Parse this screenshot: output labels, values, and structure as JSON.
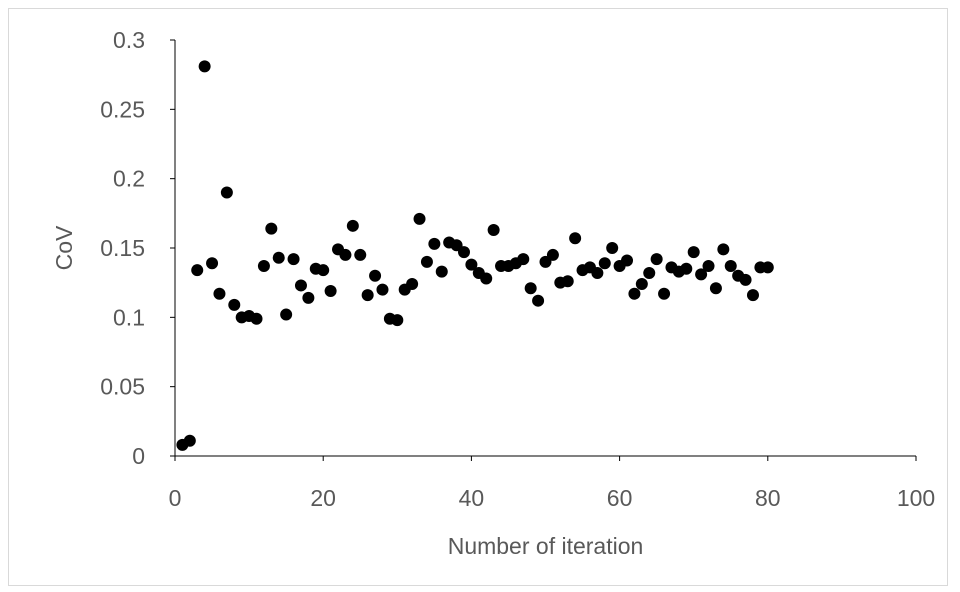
{
  "chart_data": {
    "type": "scatter",
    "title": "",
    "xlabel": "Number of iteration",
    "ylabel": "CoV",
    "xlim": [
      0,
      100
    ],
    "ylim": [
      0,
      0.3
    ],
    "xticks": [
      "0",
      "20",
      "40",
      "60",
      "80",
      "100"
    ],
    "yticks": [
      "0",
      "0.05",
      "0.1",
      "0.15",
      "0.2",
      "0.25",
      "0.3"
    ],
    "xtick_values": [
      0,
      20,
      40,
      60,
      80,
      100
    ],
    "ytick_values": [
      0,
      0.05,
      0.1,
      0.15,
      0.2,
      0.25,
      0.3
    ],
    "grid": false,
    "marker_color": "#000000",
    "axis_color": "#000000",
    "text_color": "#595959",
    "series": [
      {
        "x": [
          1,
          2,
          3,
          4,
          5,
          6,
          7,
          8,
          9,
          10,
          11,
          12,
          13,
          14,
          15,
          16,
          17,
          18,
          19,
          20,
          21,
          22,
          23,
          24,
          25,
          26,
          27,
          28,
          29,
          30,
          31,
          32,
          33,
          34,
          35,
          36,
          37,
          38,
          39,
          40,
          41,
          42,
          43,
          44,
          45,
          46,
          47,
          48,
          49,
          50,
          51,
          52,
          53,
          54,
          55,
          56,
          57,
          58,
          59,
          60,
          61,
          62,
          63,
          64,
          65,
          66,
          67,
          68,
          69,
          70,
          71,
          72,
          73,
          74,
          75,
          76,
          77,
          78,
          79,
          80
        ],
        "y": [
          0.008,
          0.011,
          0.134,
          0.281,
          0.139,
          0.117,
          0.19,
          0.109,
          0.1,
          0.101,
          0.099,
          0.137,
          0.164,
          0.143,
          0.102,
          0.142,
          0.123,
          0.114,
          0.135,
          0.134,
          0.119,
          0.149,
          0.145,
          0.166,
          0.145,
          0.116,
          0.13,
          0.12,
          0.099,
          0.098,
          0.12,
          0.124,
          0.171,
          0.14,
          0.153,
          0.133,
          0.154,
          0.152,
          0.147,
          0.138,
          0.132,
          0.128,
          0.163,
          0.137,
          0.137,
          0.139,
          0.142,
          0.121,
          0.112,
          0.14,
          0.145,
          0.125,
          0.126,
          0.157,
          0.134,
          0.136,
          0.132,
          0.139,
          0.15,
          0.137,
          0.141,
          0.117,
          0.124,
          0.132,
          0.142,
          0.117,
          0.136,
          0.133,
          0.135,
          0.147,
          0.131,
          0.137,
          0.121,
          0.149,
          0.137,
          0.13,
          0.127,
          0.116,
          0.136,
          0.136
        ]
      }
    ]
  }
}
